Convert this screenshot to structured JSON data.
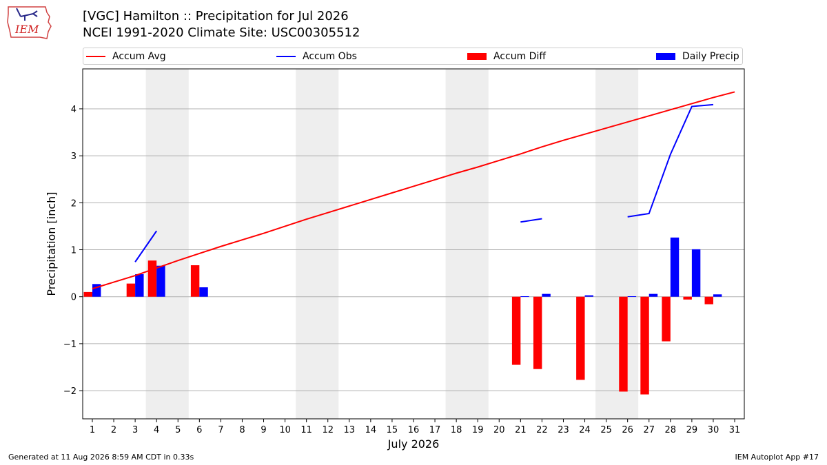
{
  "header": {
    "logo_text": "IEM",
    "title_line1": "[VGC] Hamilton :: Precipitation for Jul 2026",
    "title_line2": "NCEI 1991-2020 Climate Site: USC00305512"
  },
  "legend": [
    {
      "label": "Accum Avg",
      "kind": "line",
      "color": "#ff0000"
    },
    {
      "label": "Accum Obs",
      "kind": "line",
      "color": "#0000ff"
    },
    {
      "label": "Accum Diff",
      "kind": "box",
      "color": "#ff0000"
    },
    {
      "label": "Daily Precip",
      "kind": "box",
      "color": "#0000ff"
    }
  ],
  "footer": {
    "generated": "Generated at 11 Aug 2026 8:59 AM CDT in 0.33s",
    "app": "IEM Autoplot App #17"
  },
  "chart_data": {
    "type": "bar",
    "xlabel": "July 2026",
    "ylabel": "Precipitation [inch]",
    "xlim": [
      0.55,
      31.45
    ],
    "ylim": [
      -2.6,
      4.85
    ],
    "x_ticks": [
      1,
      2,
      3,
      4,
      5,
      6,
      7,
      8,
      9,
      10,
      11,
      12,
      13,
      14,
      15,
      16,
      17,
      18,
      19,
      20,
      21,
      22,
      23,
      24,
      25,
      26,
      27,
      28,
      29,
      30,
      31
    ],
    "y_ticks": [
      -2,
      -1,
      0,
      1,
      2,
      3,
      4
    ],
    "y_tick_labels": [
      "−2",
      "−1",
      "0",
      "1",
      "2",
      "3",
      "4"
    ],
    "grid": "horizontal",
    "weekend_shading": [
      [
        3.5,
        5.5
      ],
      [
        10.5,
        12.5
      ],
      [
        17.5,
        19.5
      ],
      [
        24.5,
        26.5
      ]
    ],
    "accum_avg": {
      "name": "Accum Avg",
      "color": "#ff0000",
      "x": [
        1,
        2,
        3,
        4,
        5,
        6,
        7,
        8,
        9,
        10,
        11,
        12,
        13,
        14,
        15,
        16,
        17,
        18,
        19,
        20,
        21,
        22,
        23,
        24,
        25,
        26,
        27,
        28,
        29,
        30,
        31
      ],
      "y": [
        0.17,
        0.31,
        0.45,
        0.61,
        0.77,
        0.92,
        1.07,
        1.21,
        1.35,
        1.5,
        1.65,
        1.79,
        1.93,
        2.07,
        2.21,
        2.35,
        2.49,
        2.63,
        2.76,
        2.9,
        3.04,
        3.19,
        3.33,
        3.46,
        3.59,
        3.72,
        3.85,
        3.98,
        4.11,
        4.24,
        4.36
      ]
    },
    "accum_obs": {
      "name": "Accum Obs",
      "color": "#0000ff",
      "segments": [
        {
          "x": [
            3,
            4
          ],
          "y": [
            0.74,
            1.4
          ]
        },
        {
          "x": [
            21,
            22
          ],
          "y": [
            1.59,
            1.66
          ]
        },
        {
          "x": [
            26,
            27,
            28,
            29,
            30
          ],
          "y": [
            1.7,
            1.77,
            3.03,
            4.05,
            4.09
          ]
        }
      ]
    },
    "accum_diff": {
      "name": "Accum Diff",
      "color": "#ff0000",
      "days": [
        1,
        3,
        4,
        6,
        21,
        22,
        24,
        26,
        27,
        28,
        29,
        30
      ],
      "values": [
        0.1,
        0.28,
        0.77,
        0.67,
        -1.45,
        -1.54,
        -1.77,
        -2.02,
        -2.08,
        -0.95,
        -0.06,
        -0.16
      ]
    },
    "daily_precip": {
      "name": "Daily Precip",
      "color": "#0000ff",
      "days": [
        1,
        3,
        4,
        6,
        21,
        22,
        24,
        26,
        27,
        28,
        29,
        30
      ],
      "values": [
        0.27,
        0.48,
        0.66,
        0.2,
        0.01,
        0.06,
        0.03,
        0.01,
        0.06,
        1.26,
        1.01,
        0.05
      ]
    },
    "bar_width": 0.4
  }
}
